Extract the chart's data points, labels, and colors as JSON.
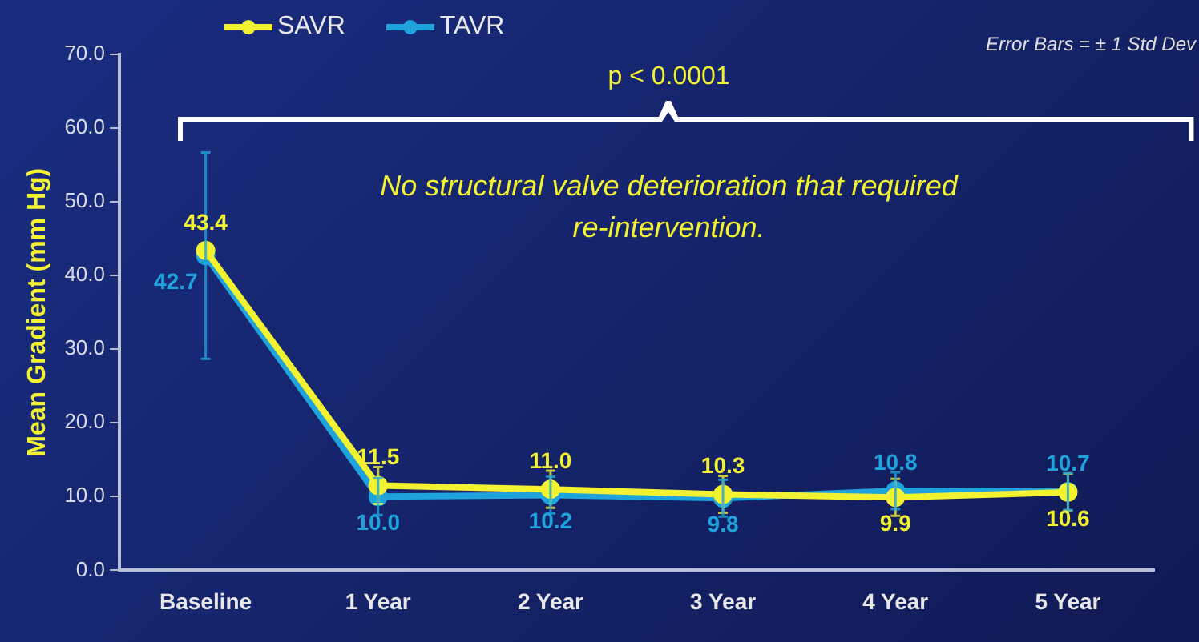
{
  "chart_data": {
    "type": "line",
    "ylabel": "Mean Gradient (mm Hg)",
    "categories": [
      "Baseline",
      "1 Year",
      "2 Year",
      "3 Year",
      "4 Year",
      "5 Year"
    ],
    "series": [
      {
        "name": "SAVR",
        "color": "#f2f230",
        "values": [
          43.4,
          11.5,
          11.0,
          10.3,
          9.9,
          10.6
        ],
        "value_labels": [
          "43.4",
          "11.5",
          "11.0",
          "10.3",
          "9.9",
          "10.6"
        ],
        "errors": [
          null,
          2.5,
          2.5,
          2.5,
          2.5,
          2.5
        ]
      },
      {
        "name": "TAVR",
        "color": "#1fa3dc",
        "values": [
          42.7,
          10.0,
          10.2,
          9.8,
          10.8,
          10.7
        ],
        "value_labels": [
          "42.7",
          "10.0",
          "10.2",
          "9.8",
          "10.8",
          "10.7"
        ],
        "errors": [
          14,
          2.5,
          2.5,
          2.5,
          2.5,
          2.5
        ]
      }
    ],
    "ylim": [
      0,
      70
    ],
    "yticks": [
      {
        "value": 0,
        "label": "0.0"
      },
      {
        "value": 10,
        "label": "10.0"
      },
      {
        "value": 20,
        "label": "20.0"
      },
      {
        "value": 30,
        "label": "30.0"
      },
      {
        "value": 40,
        "label": "40.0"
      },
      {
        "value": 50,
        "label": "50.0"
      },
      {
        "value": 60,
        "label": "60.0"
      },
      {
        "value": 70,
        "label": "70.0"
      }
    ],
    "grid": false,
    "legend": "top left",
    "marker": "circle",
    "line_style": "solid",
    "annotations": [
      "p < 0.0001",
      "No structural valve deterioration that required re-intervention.",
      "Error Bars = ± 1 Std Dev"
    ]
  }
}
